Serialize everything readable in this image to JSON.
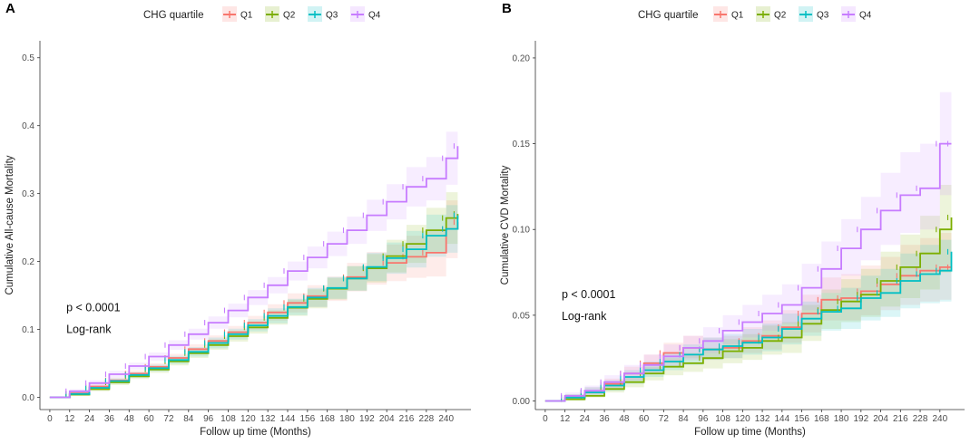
{
  "colors": {
    "Q1": "#F8766D",
    "Q2": "#7CAE00",
    "Q3": "#00BFC4",
    "Q4": "#C77CFF"
  },
  "chart_data": [
    {
      "panel_label": "A",
      "type": "line",
      "legend_title": "CHG quartile",
      "legend_position": "top",
      "series": [
        {
          "name": "Q1",
          "x": [
            0,
            12,
            24,
            36,
            48,
            60,
            72,
            84,
            96,
            108,
            120,
            132,
            144,
            156,
            168,
            180,
            192,
            204,
            216,
            228,
            240,
            247
          ],
          "values": [
            0,
            0.006,
            0.016,
            0.025,
            0.035,
            0.045,
            0.058,
            0.071,
            0.083,
            0.096,
            0.11,
            0.125,
            0.139,
            0.149,
            0.16,
            0.177,
            0.19,
            0.198,
            0.207,
            0.213,
            0.248,
            0.258
          ],
          "ci_low": [
            0,
            0.004,
            0.013,
            0.021,
            0.031,
            0.04,
            0.052,
            0.064,
            0.076,
            0.088,
            0.1,
            0.113,
            0.125,
            0.133,
            0.142,
            0.156,
            0.166,
            0.171,
            0.176,
            0.178,
            0.205,
            0.21
          ],
          "ci_high": [
            0,
            0.009,
            0.019,
            0.029,
            0.04,
            0.05,
            0.064,
            0.078,
            0.091,
            0.105,
            0.12,
            0.137,
            0.153,
            0.165,
            0.178,
            0.198,
            0.214,
            0.225,
            0.238,
            0.248,
            0.29,
            0.305
          ]
        },
        {
          "name": "Q2",
          "x": [
            0,
            12,
            24,
            36,
            48,
            60,
            72,
            84,
            96,
            108,
            120,
            132,
            144,
            156,
            168,
            180,
            192,
            204,
            216,
            228,
            240,
            247
          ],
          "values": [
            0,
            0.004,
            0.012,
            0.022,
            0.031,
            0.041,
            0.053,
            0.065,
            0.077,
            0.09,
            0.103,
            0.117,
            0.132,
            0.145,
            0.16,
            0.175,
            0.19,
            0.208,
            0.226,
            0.246,
            0.264,
            0.27
          ],
          "ci_low": [
            0,
            0.002,
            0.009,
            0.018,
            0.027,
            0.036,
            0.047,
            0.058,
            0.07,
            0.082,
            0.094,
            0.107,
            0.12,
            0.131,
            0.144,
            0.157,
            0.169,
            0.184,
            0.198,
            0.213,
            0.226,
            0.23
          ],
          "ci_high": [
            0,
            0.007,
            0.015,
            0.026,
            0.035,
            0.046,
            0.059,
            0.072,
            0.085,
            0.098,
            0.112,
            0.128,
            0.144,
            0.159,
            0.176,
            0.193,
            0.211,
            0.232,
            0.254,
            0.279,
            0.302,
            0.31
          ]
        },
        {
          "name": "Q3",
          "x": [
            0,
            12,
            24,
            36,
            48,
            60,
            72,
            84,
            96,
            108,
            120,
            132,
            144,
            156,
            168,
            180,
            192,
            204,
            216,
            228,
            240,
            247
          ],
          "values": [
            0,
            0.005,
            0.014,
            0.024,
            0.033,
            0.043,
            0.055,
            0.067,
            0.08,
            0.093,
            0.106,
            0.12,
            0.133,
            0.147,
            0.161,
            0.175,
            0.192,
            0.205,
            0.218,
            0.238,
            0.248,
            0.268
          ],
          "ci_low": [
            0,
            0.003,
            0.011,
            0.02,
            0.029,
            0.038,
            0.049,
            0.06,
            0.072,
            0.085,
            0.097,
            0.109,
            0.121,
            0.133,
            0.145,
            0.157,
            0.171,
            0.182,
            0.191,
            0.207,
            0.213,
            0.228
          ],
          "ci_high": [
            0,
            0.008,
            0.017,
            0.028,
            0.037,
            0.048,
            0.061,
            0.074,
            0.088,
            0.101,
            0.115,
            0.131,
            0.145,
            0.161,
            0.177,
            0.193,
            0.213,
            0.228,
            0.245,
            0.269,
            0.283,
            0.308
          ]
        },
        {
          "name": "Q4",
          "x": [
            0,
            12,
            24,
            36,
            48,
            60,
            72,
            84,
            96,
            108,
            120,
            132,
            144,
            156,
            168,
            180,
            192,
            204,
            216,
            228,
            240,
            247
          ],
          "values": [
            0,
            0.009,
            0.021,
            0.034,
            0.046,
            0.06,
            0.077,
            0.093,
            0.11,
            0.128,
            0.147,
            0.165,
            0.186,
            0.206,
            0.226,
            0.246,
            0.268,
            0.288,
            0.31,
            0.322,
            0.352,
            0.37
          ],
          "ci_low": [
            0,
            0.006,
            0.017,
            0.029,
            0.041,
            0.054,
            0.07,
            0.085,
            0.101,
            0.118,
            0.136,
            0.153,
            0.172,
            0.19,
            0.208,
            0.226,
            0.245,
            0.262,
            0.281,
            0.29,
            0.313,
            0.325
          ],
          "ci_high": [
            0,
            0.012,
            0.025,
            0.039,
            0.051,
            0.066,
            0.084,
            0.101,
            0.119,
            0.138,
            0.158,
            0.177,
            0.2,
            0.222,
            0.244,
            0.266,
            0.291,
            0.314,
            0.339,
            0.354,
            0.391,
            0.412
          ]
        }
      ],
      "xlabel": "Follow up time (Months)",
      "ylabel": "Cumulative All-cause Mortality",
      "xlim": [
        -6,
        255
      ],
      "ylim": [
        -0.018,
        0.525
      ],
      "xticks": [
        0,
        12,
        24,
        36,
        48,
        60,
        72,
        84,
        96,
        108,
        120,
        132,
        144,
        156,
        168,
        180,
        192,
        204,
        216,
        228,
        240
      ],
      "yticks": [
        0.0,
        0.1,
        0.2,
        0.3,
        0.4,
        0.5
      ],
      "ytick_labels": [
        "0.0",
        "0.1",
        "0.2",
        "0.3",
        "0.4",
        "0.5"
      ],
      "annotations": [
        "p < 0.0001",
        "Log-rank"
      ],
      "annotation_anchor": [
        10,
        0.127
      ],
      "grid": false
    },
    {
      "panel_label": "B",
      "type": "line",
      "legend_title": "CHG quartile",
      "legend_position": "top",
      "series": [
        {
          "name": "Q1",
          "x": [
            0,
            12,
            24,
            36,
            48,
            60,
            72,
            84,
            96,
            108,
            120,
            132,
            144,
            156,
            168,
            180,
            192,
            204,
            216,
            228,
            240,
            247
          ],
          "values": [
            0,
            0.002,
            0.005,
            0.01,
            0.016,
            0.022,
            0.028,
            0.031,
            0.03,
            0.031,
            0.035,
            0.038,
            0.043,
            0.051,
            0.059,
            0.06,
            0.064,
            0.068,
            0.073,
            0.076,
            0.078,
            0.078
          ],
          "ci_low": [
            0,
            0.001,
            0.003,
            0.007,
            0.012,
            0.017,
            0.022,
            0.025,
            0.024,
            0.025,
            0.028,
            0.03,
            0.034,
            0.04,
            0.047,
            0.047,
            0.05,
            0.053,
            0.056,
            0.058,
            0.059,
            0.059
          ],
          "ci_high": [
            0,
            0.004,
            0.008,
            0.013,
            0.02,
            0.027,
            0.034,
            0.038,
            0.037,
            0.038,
            0.043,
            0.047,
            0.053,
            0.062,
            0.072,
            0.074,
            0.079,
            0.084,
            0.091,
            0.095,
            0.098,
            0.098
          ]
        },
        {
          "name": "Q2",
          "x": [
            0,
            12,
            24,
            36,
            48,
            60,
            72,
            84,
            96,
            108,
            120,
            132,
            144,
            156,
            168,
            180,
            192,
            204,
            216,
            228,
            240,
            247
          ],
          "values": [
            0,
            0.001,
            0.003,
            0.007,
            0.011,
            0.016,
            0.02,
            0.022,
            0.025,
            0.029,
            0.031,
            0.035,
            0.037,
            0.045,
            0.053,
            0.058,
            0.062,
            0.07,
            0.078,
            0.086,
            0.1,
            0.107
          ],
          "ci_low": [
            0,
            0,
            0.002,
            0.005,
            0.008,
            0.012,
            0.015,
            0.017,
            0.019,
            0.022,
            0.024,
            0.027,
            0.028,
            0.035,
            0.042,
            0.046,
            0.049,
            0.055,
            0.06,
            0.065,
            0.075,
            0.08
          ],
          "ci_high": [
            0,
            0.003,
            0.005,
            0.01,
            0.014,
            0.02,
            0.025,
            0.028,
            0.031,
            0.036,
            0.039,
            0.044,
            0.046,
            0.056,
            0.065,
            0.071,
            0.077,
            0.087,
            0.097,
            0.108,
            0.126,
            0.135
          ]
        },
        {
          "name": "Q3",
          "x": [
            0,
            12,
            24,
            36,
            48,
            60,
            72,
            84,
            96,
            108,
            120,
            132,
            144,
            156,
            168,
            180,
            192,
            204,
            216,
            228,
            240,
            247
          ],
          "values": [
            0,
            0.002,
            0.005,
            0.009,
            0.014,
            0.018,
            0.023,
            0.027,
            0.03,
            0.032,
            0.034,
            0.037,
            0.042,
            0.048,
            0.052,
            0.054,
            0.06,
            0.063,
            0.07,
            0.074,
            0.076,
            0.087
          ],
          "ci_low": [
            0,
            0.001,
            0.003,
            0.006,
            0.01,
            0.014,
            0.018,
            0.021,
            0.024,
            0.025,
            0.027,
            0.029,
            0.033,
            0.038,
            0.041,
            0.042,
            0.047,
            0.049,
            0.054,
            0.057,
            0.058,
            0.066
          ],
          "ci_high": [
            0,
            0.004,
            0.008,
            0.012,
            0.018,
            0.023,
            0.028,
            0.033,
            0.037,
            0.039,
            0.042,
            0.045,
            0.051,
            0.058,
            0.063,
            0.066,
            0.073,
            0.077,
            0.086,
            0.091,
            0.094,
            0.108
          ]
        },
        {
          "name": "Q4",
          "x": [
            0,
            12,
            24,
            36,
            48,
            60,
            72,
            84,
            96,
            108,
            120,
            132,
            144,
            156,
            168,
            180,
            192,
            204,
            216,
            228,
            240,
            247
          ],
          "values": [
            0,
            0.003,
            0.006,
            0.011,
            0.016,
            0.021,
            0.026,
            0.031,
            0.035,
            0.041,
            0.046,
            0.051,
            0.056,
            0.066,
            0.077,
            0.089,
            0.1,
            0.111,
            0.12,
            0.124,
            0.15,
            0.15
          ],
          "ci_low": [
            0,
            0.002,
            0.004,
            0.008,
            0.012,
            0.016,
            0.02,
            0.024,
            0.028,
            0.033,
            0.037,
            0.041,
            0.045,
            0.053,
            0.063,
            0.073,
            0.082,
            0.091,
            0.098,
            0.1,
            0.12,
            0.12
          ],
          "ci_high": [
            0,
            0.005,
            0.009,
            0.015,
            0.021,
            0.027,
            0.033,
            0.038,
            0.043,
            0.05,
            0.056,
            0.062,
            0.068,
            0.08,
            0.093,
            0.106,
            0.119,
            0.133,
            0.145,
            0.15,
            0.18,
            0.18
          ]
        }
      ],
      "xlabel": "Follow up time (Months)",
      "ylabel": "Cumulative CVD Mortality",
      "xlim": [
        -6,
        255
      ],
      "ylim": [
        -0.005,
        0.21
      ],
      "xticks": [
        0,
        12,
        24,
        36,
        48,
        60,
        72,
        84,
        96,
        108,
        120,
        132,
        144,
        156,
        168,
        180,
        192,
        204,
        216,
        228,
        240
      ],
      "yticks": [
        0.0,
        0.05,
        0.1,
        0.15,
        0.2
      ],
      "ytick_labels": [
        "0.00",
        "0.05",
        "0.10",
        "0.15",
        "0.20"
      ],
      "annotations": [
        "p < 0.0001",
        "Log-rank"
      ],
      "annotation_anchor": [
        10,
        0.06
      ],
      "grid": false
    }
  ]
}
